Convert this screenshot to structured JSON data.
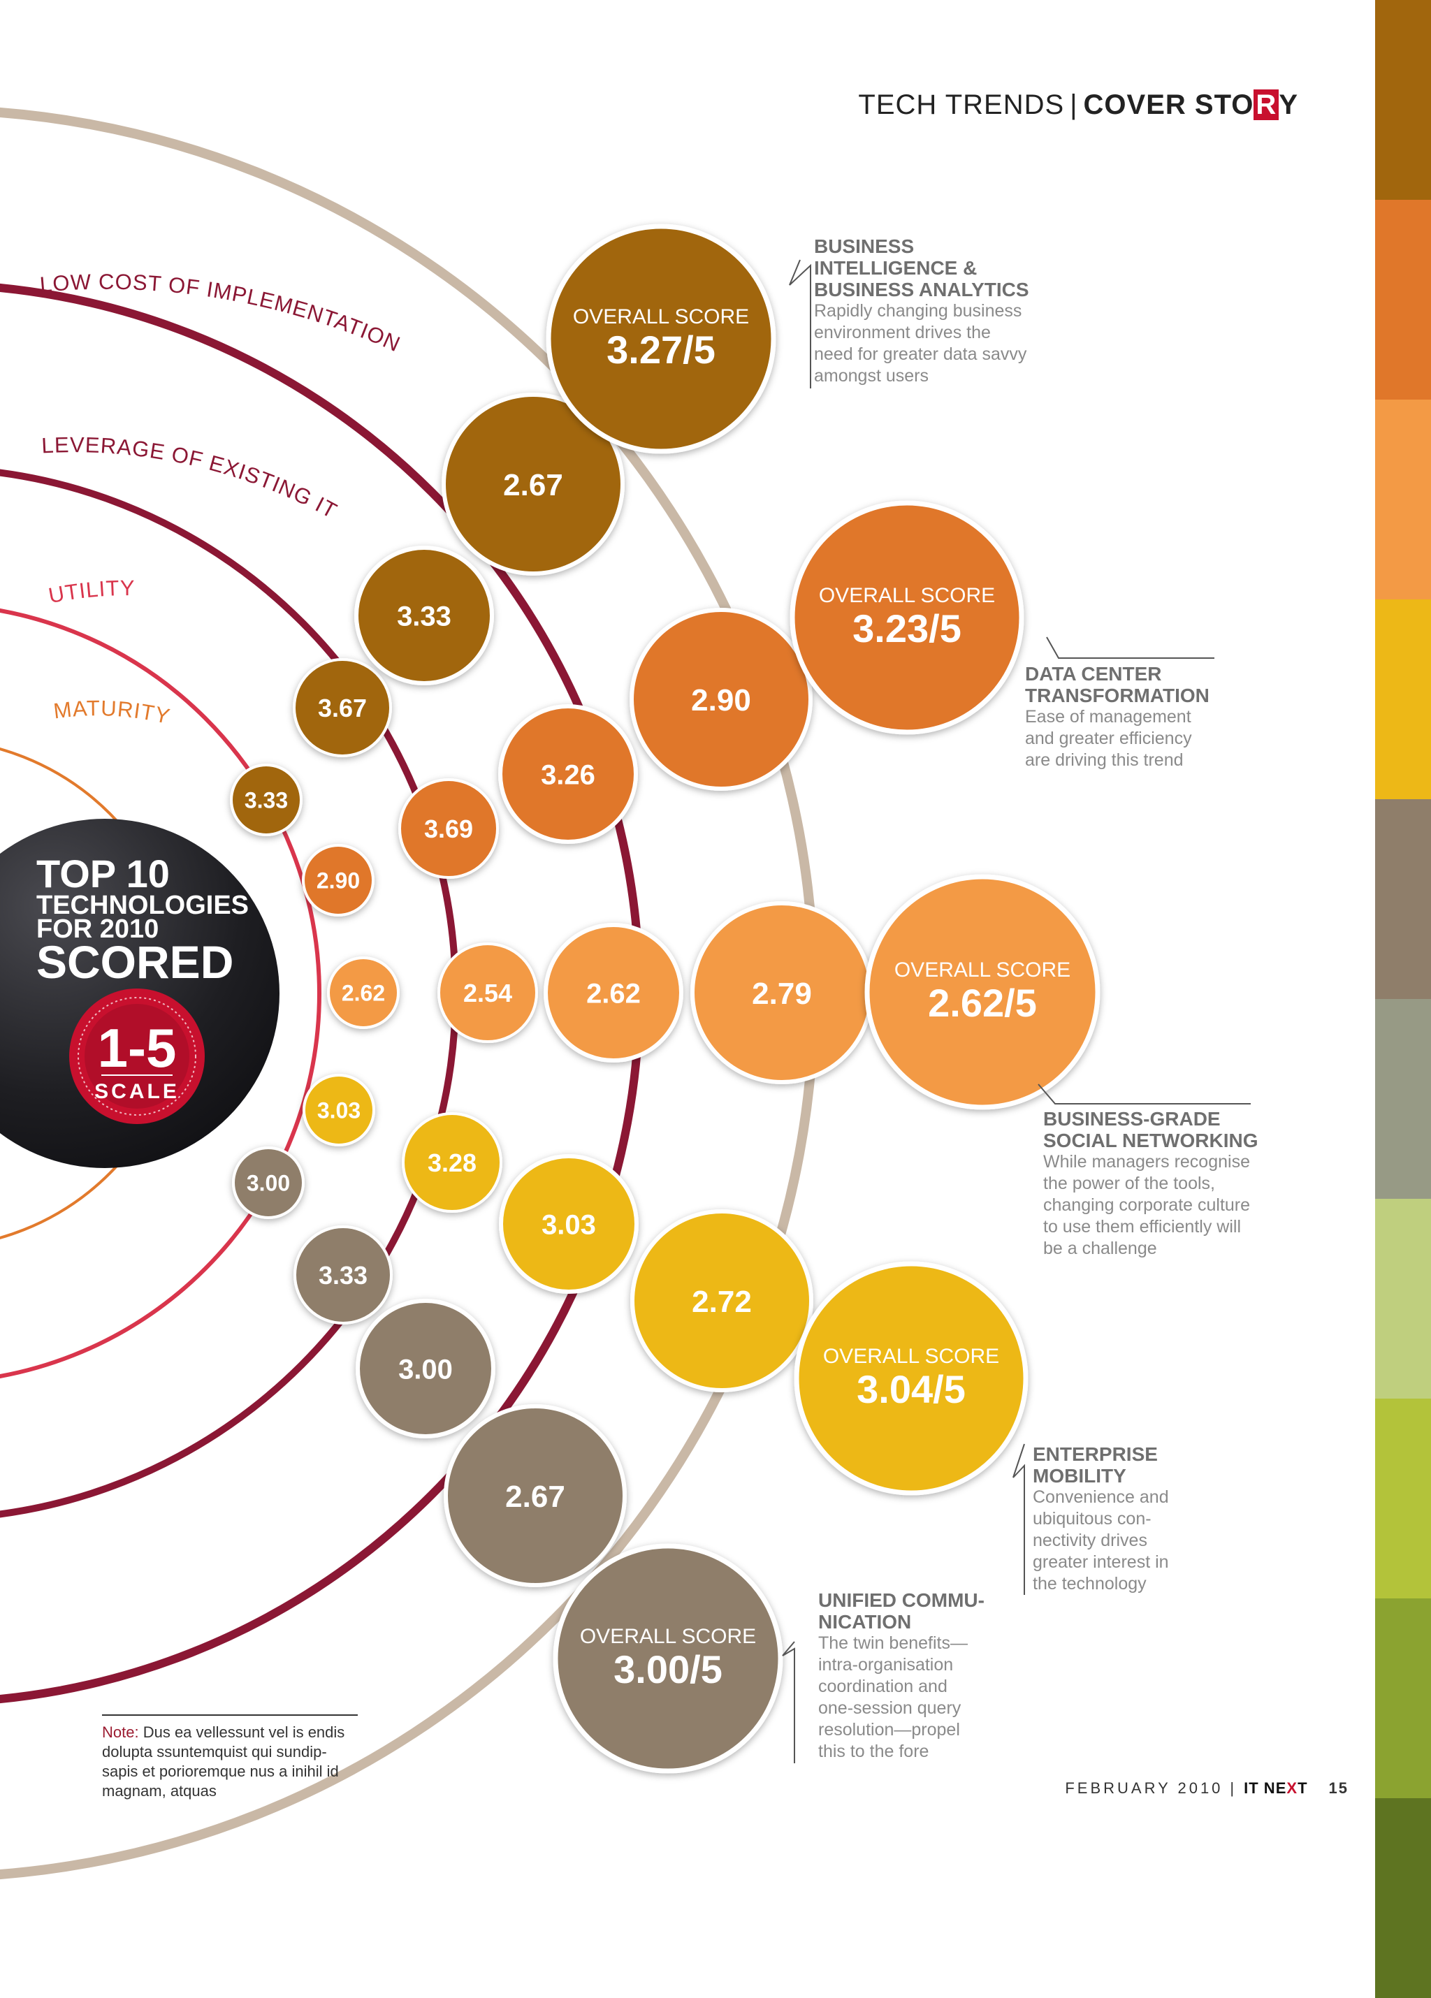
{
  "header": {
    "section": "TECH TRENDS",
    "separator": "|",
    "cover_a": "COVER STO",
    "cover_boxed": "R",
    "cover_b": "Y"
  },
  "colors": {
    "bi": "#a1660d",
    "dc": "#e0772a",
    "social": "#f39a45",
    "mobility": "#edb817",
    "uc": "#8f7e6a",
    "arc_outer": "#c9b8a6",
    "arc_lowcost": "#8b1734",
    "arc_leverage": "#8b1734",
    "arc_utility": "#d9354c",
    "arc_maturity": "#e27a2c",
    "badge_red": "#c8102e",
    "badge_dark": "#1a1a1d"
  },
  "side_strip_colors": [
    "#a1660d",
    "#e0772a",
    "#f39a45",
    "#edb817",
    "#8f7e6a",
    "#979a85",
    "#bfcf7e",
    "#b3c33a",
    "#8ba330",
    "#5e7421"
  ],
  "arc_labels": {
    "low_cost": "LOW COST OF IMPLEMENTATION",
    "leverage": "LEVERAGE OF EXISTING IT",
    "utility": "UTILITY",
    "maturity": "MATURITY"
  },
  "center_badge": {
    "line1": "TOP 10",
    "line2": "TECHNOLOGIES",
    "line3": "FOR 2010",
    "line4": "SCORED",
    "scale_value": "1-5",
    "scale_label": "SCALE"
  },
  "overall_label": "OVERALL SCORE",
  "technologies": [
    {
      "key": "bi",
      "name": "BUSINESS INTELLIGENCE & BUSINESS ANALYTICS",
      "title_lines": [
        "BUSINESS",
        "INTELLIGENCE &",
        "BUSINESS ANALYTICS"
      ],
      "description": "Rapidly changing business\nenvironment drives the\nneed for greater data savvy\namongst users",
      "overall": "3.27/5",
      "low_cost": "2.67",
      "leverage": "3.33",
      "utility": "3.67",
      "maturity": "3.33"
    },
    {
      "key": "dc",
      "name": "DATA CENTER TRANSFORMATION",
      "title_lines": [
        "DATA CENTER",
        "TRANSFORMATION"
      ],
      "description": "Ease of management\nand greater efficiency\nare driving this trend",
      "overall": "3.23/5",
      "low_cost": "2.90",
      "leverage": "3.26",
      "utility": "3.69",
      "maturity": "2.90"
    },
    {
      "key": "social",
      "name": "BUSINESS-GRADE SOCIAL NETWORKING",
      "title_lines": [
        "BUSINESS-GRADE",
        "SOCIAL NETWORKING"
      ],
      "description": "While managers recognise\nthe power of the tools,\nchanging corporate culture\nto use them efficiently will\nbe a challenge",
      "overall": "2.62/5",
      "low_cost": "2.79",
      "leverage": "2.62",
      "utility": "2.54",
      "maturity": "2.62"
    },
    {
      "key": "mobility",
      "name": "ENTERPRISE MOBILITY",
      "title_lines": [
        "ENTERPRISE",
        "MOBILITY"
      ],
      "description": "Convenience and\nubiquitous con-\nnectivity drives\ngreater interest in\nthe technology",
      "overall": "3.04/5",
      "low_cost": "2.72",
      "leverage": "3.03",
      "utility": "3.28",
      "maturity": "3.03"
    },
    {
      "key": "uc",
      "name": "UNIFIED COMMUNICATION",
      "title_lines": [
        "UNIFIED COMMU-",
        "NICATION"
      ],
      "description": "The twin benefits—\nintra-organisation\ncoordination and\none-session query\nresolution—propel\nthis to the fore",
      "overall": "3.00/5",
      "low_cost": "2.67",
      "leverage": "3.00",
      "utility": "3.33",
      "maturity": "3.00"
    }
  ],
  "note": {
    "label": "Note:",
    "text": " Dus ea vellessunt vel is endis dolupta ssuntemquist qui sundip-sapis et porioremque nus a inihil id magnam, atquas"
  },
  "footer": {
    "date": "FEBRUARY 2010",
    "pipe": "|",
    "brand_a": "IT NE",
    "brand_b": "X",
    "brand_c": "T",
    "page": "15"
  }
}
